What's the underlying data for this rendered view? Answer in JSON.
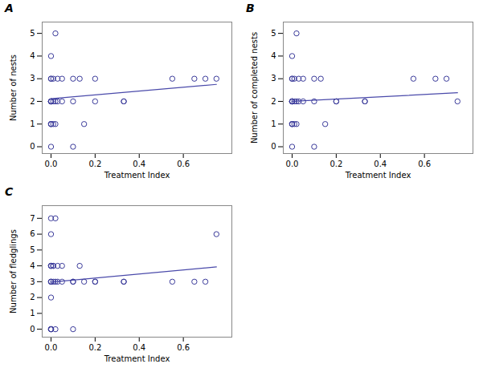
{
  "chart_data": [
    {
      "type": "scatter",
      "title": "A",
      "x_label": "Treatment Index",
      "y_label": "Number of nests",
      "xlim": [
        -0.04,
        0.82
      ],
      "xticks": [
        {
          "value": 0.0,
          "label": "0.0"
        },
        0.2,
        0.4,
        0.6
      ],
      "ylim": [
        -0.3,
        5.5
      ],
      "yticks": [
        0,
        1,
        2,
        3,
        4,
        5
      ],
      "series": [
        {
          "type": "line",
          "color": "#4a4aaa",
          "x": [
            0.0,
            0.75
          ],
          "values": [
            2.12,
            2.75
          ]
        },
        {
          "type": "scatter",
          "color": "#3a3a9a",
          "marker": "circle",
          "x": [
            0.0,
            0.0,
            0.0,
            0.0,
            0.0,
            0.0,
            0.0,
            0.0,
            0.0,
            0.0,
            0.0,
            0.0,
            0.01,
            0.01,
            0.01,
            0.02,
            0.02,
            0.02,
            0.03,
            0.03,
            0.05,
            0.05,
            0.1,
            0.1,
            0.1,
            0.13,
            0.15,
            0.2,
            0.2,
            0.33,
            0.33,
            0.55,
            0.65,
            0.7,
            0.75
          ],
          "values": [
            0,
            1,
            1,
            1,
            2,
            2,
            2,
            2,
            2,
            3,
            3,
            4,
            1,
            2,
            3,
            1,
            2,
            5,
            2,
            3,
            2,
            3,
            0,
            2,
            3,
            3,
            1,
            2,
            3,
            2,
            2,
            3,
            3,
            3,
            3
          ]
        }
      ]
    },
    {
      "type": "scatter",
      "title": "B",
      "x_label": "Treatment Index",
      "y_label": "Number of completed nests",
      "xlim": [
        -0.04,
        0.82
      ],
      "xticks": [
        {
          "value": 0.0,
          "label": "0.0"
        },
        0.2,
        0.4,
        0.6
      ],
      "ylim": [
        -0.3,
        5.5
      ],
      "yticks": [
        0,
        1,
        2,
        3,
        4,
        5
      ],
      "series": [
        {
          "type": "line",
          "color": "#4a4aaa",
          "x": [
            0.0,
            0.75
          ],
          "values": [
            2.0,
            2.38
          ]
        },
        {
          "type": "scatter",
          "color": "#3a3a9a",
          "marker": "circle",
          "x": [
            0.0,
            0.0,
            0.0,
            0.0,
            0.0,
            0.0,
            0.0,
            0.0,
            0.0,
            0.0,
            0.0,
            0.0,
            0.01,
            0.01,
            0.01,
            0.02,
            0.02,
            0.02,
            0.03,
            0.03,
            0.05,
            0.05,
            0.1,
            0.1,
            0.1,
            0.13,
            0.15,
            0.2,
            0.2,
            0.33,
            0.33,
            0.55,
            0.65,
            0.7,
            0.75
          ],
          "values": [
            0,
            1,
            1,
            1,
            2,
            2,
            2,
            2,
            2,
            3,
            3,
            4,
            1,
            2,
            3,
            1,
            2,
            5,
            2,
            3,
            2,
            3,
            0,
            2,
            3,
            3,
            1,
            2,
            2,
            2,
            2,
            3,
            3,
            3,
            2
          ]
        }
      ]
    },
    {
      "type": "scatter",
      "title": "C",
      "x_label": "Treatment Index",
      "y_label": "Number of fledglings",
      "xlim": [
        -0.04,
        0.82
      ],
      "xticks": [
        {
          "value": 0.0,
          "label": "0.0"
        },
        0.2,
        0.4,
        0.6
      ],
      "ylim": [
        -0.5,
        7.8
      ],
      "yticks": [
        0,
        1,
        2,
        3,
        4,
        5,
        6,
        7
      ],
      "series": [
        {
          "type": "line",
          "color": "#4a4aaa",
          "x": [
            0.0,
            0.75
          ],
          "values": [
            2.97,
            3.93
          ]
        },
        {
          "type": "scatter",
          "color": "#3a3a9a",
          "marker": "circle",
          "x": [
            0.0,
            0.0,
            0.0,
            0.0,
            0.0,
            0.0,
            0.0,
            0.0,
            0.0,
            0.0,
            0.0,
            0.0,
            0.0,
            0.01,
            0.01,
            0.01,
            0.02,
            0.02,
            0.02,
            0.03,
            0.03,
            0.05,
            0.05,
            0.1,
            0.1,
            0.1,
            0.13,
            0.15,
            0.2,
            0.2,
            0.33,
            0.33,
            0.55,
            0.65,
            0.7,
            0.75
          ],
          "values": [
            0,
            0,
            0,
            0,
            2,
            3,
            3,
            3,
            4,
            4,
            4,
            6,
            7,
            3,
            4,
            4,
            0,
            3,
            7,
            3,
            4,
            3,
            4,
            0,
            3,
            3,
            4,
            3,
            3,
            3,
            3,
            3,
            3,
            3,
            3,
            6
          ]
        }
      ]
    }
  ]
}
